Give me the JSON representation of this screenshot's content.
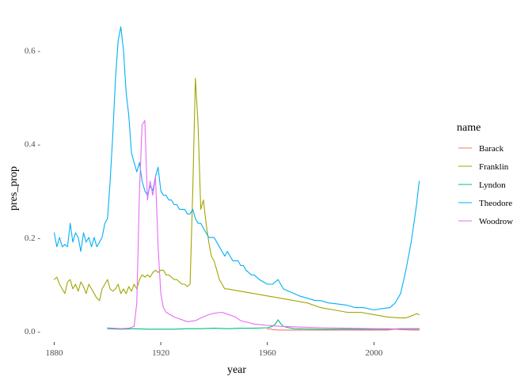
{
  "chart_data": {
    "type": "line",
    "title": "",
    "xlabel": "year",
    "ylabel": "pres_prop",
    "xlim": [
      1876,
      2021
    ],
    "ylim": [
      -0.015,
      0.67
    ],
    "x_ticks": [
      1880,
      1920,
      1960,
      2000
    ],
    "y_ticks": [
      0.0,
      0.2,
      0.4,
      0.6
    ],
    "x_tick_labels": [
      "1880",
      "1920",
      "1960",
      "2000"
    ],
    "y_tick_labels": [
      "0.0 -",
      "0.2 -",
      "0.4 -",
      "0.6 -"
    ],
    "grid": false,
    "legend": {
      "title": "name",
      "position": "right",
      "entries": [
        "Barack",
        "Franklin",
        "Lyndon",
        "Theodore",
        "Woodrow"
      ]
    },
    "series": [
      {
        "name": "Barack",
        "color": "#F8766D",
        "points": [
          [
            1960,
            0.004
          ],
          [
            1961,
            0.005
          ],
          [
            1962,
            0.003
          ],
          [
            1965,
            0.002
          ],
          [
            1970,
            0.002
          ],
          [
            1980,
            0.002
          ],
          [
            1990,
            0.002
          ],
          [
            2000,
            0.002
          ],
          [
            2005,
            0.002
          ],
          [
            2008,
            0.004
          ],
          [
            2010,
            0.003
          ],
          [
            2015,
            0.002
          ],
          [
            2017,
            0.002
          ]
        ]
      },
      {
        "name": "Franklin",
        "color": "#A3A500",
        "points": [
          [
            1880,
            0.11
          ],
          [
            1881,
            0.115
          ],
          [
            1882,
            0.1
          ],
          [
            1883,
            0.09
          ],
          [
            1884,
            0.08
          ],
          [
            1885,
            0.105
          ],
          [
            1886,
            0.11
          ],
          [
            1887,
            0.09
          ],
          [
            1888,
            0.1
          ],
          [
            1889,
            0.085
          ],
          [
            1890,
            0.105
          ],
          [
            1891,
            0.095
          ],
          [
            1892,
            0.08
          ],
          [
            1893,
            0.1
          ],
          [
            1894,
            0.09
          ],
          [
            1895,
            0.08
          ],
          [
            1896,
            0.07
          ],
          [
            1897,
            0.065
          ],
          [
            1898,
            0.09
          ],
          [
            1899,
            0.1
          ],
          [
            1900,
            0.11
          ],
          [
            1901,
            0.09
          ],
          [
            1902,
            0.085
          ],
          [
            1903,
            0.09
          ],
          [
            1904,
            0.1
          ],
          [
            1905,
            0.08
          ],
          [
            1906,
            0.09
          ],
          [
            1907,
            0.08
          ],
          [
            1908,
            0.095
          ],
          [
            1909,
            0.085
          ],
          [
            1910,
            0.1
          ],
          [
            1911,
            0.09
          ],
          [
            1912,
            0.11
          ],
          [
            1913,
            0.12
          ],
          [
            1914,
            0.115
          ],
          [
            1915,
            0.12
          ],
          [
            1916,
            0.115
          ],
          [
            1917,
            0.125
          ],
          [
            1918,
            0.13
          ],
          [
            1919,
            0.125
          ],
          [
            1920,
            0.13
          ],
          [
            1921,
            0.13
          ],
          [
            1922,
            0.12
          ],
          [
            1923,
            0.12
          ],
          [
            1924,
            0.115
          ],
          [
            1925,
            0.11
          ],
          [
            1926,
            0.11
          ],
          [
            1927,
            0.105
          ],
          [
            1928,
            0.1
          ],
          [
            1929,
            0.1
          ],
          [
            1930,
            0.095
          ],
          [
            1931,
            0.1
          ],
          [
            1932,
            0.3
          ],
          [
            1933,
            0.54
          ],
          [
            1934,
            0.44
          ],
          [
            1935,
            0.26
          ],
          [
            1936,
            0.28
          ],
          [
            1937,
            0.23
          ],
          [
            1938,
            0.19
          ],
          [
            1939,
            0.16
          ],
          [
            1940,
            0.15
          ],
          [
            1941,
            0.13
          ],
          [
            1942,
            0.11
          ],
          [
            1943,
            0.1
          ],
          [
            1944,
            0.09
          ],
          [
            1945,
            0.09
          ],
          [
            1950,
            0.085
          ],
          [
            1955,
            0.08
          ],
          [
            1960,
            0.075
          ],
          [
            1965,
            0.07
          ],
          [
            1970,
            0.065
          ],
          [
            1975,
            0.06
          ],
          [
            1980,
            0.05
          ],
          [
            1985,
            0.045
          ],
          [
            1990,
            0.04
          ],
          [
            1995,
            0.04
          ],
          [
            2000,
            0.035
          ],
          [
            2005,
            0.03
          ],
          [
            2010,
            0.028
          ],
          [
            2012,
            0.028
          ],
          [
            2014,
            0.032
          ],
          [
            2016,
            0.037
          ],
          [
            2017,
            0.035
          ]
        ]
      },
      {
        "name": "Lyndon",
        "color": "#00BF7D",
        "points": [
          [
            1900,
            0.005
          ],
          [
            1905,
            0.004
          ],
          [
            1910,
            0.005
          ],
          [
            1915,
            0.004
          ],
          [
            1920,
            0.004
          ],
          [
            1925,
            0.004
          ],
          [
            1930,
            0.005
          ],
          [
            1935,
            0.005
          ],
          [
            1940,
            0.006
          ],
          [
            1945,
            0.005
          ],
          [
            1950,
            0.006
          ],
          [
            1955,
            0.006
          ],
          [
            1960,
            0.007
          ],
          [
            1962,
            0.01
          ],
          [
            1963,
            0.015
          ],
          [
            1964,
            0.024
          ],
          [
            1965,
            0.016
          ],
          [
            1966,
            0.01
          ],
          [
            1968,
            0.007
          ],
          [
            1970,
            0.005
          ],
          [
            1980,
            0.004
          ],
          [
            1990,
            0.004
          ],
          [
            2000,
            0.004
          ],
          [
            2005,
            0.004
          ],
          [
            2010,
            0.005
          ],
          [
            2015,
            0.005
          ],
          [
            2017,
            0.005
          ]
        ]
      },
      {
        "name": "Theodore",
        "color": "#00B0F6",
        "points": [
          [
            1880,
            0.21
          ],
          [
            1881,
            0.18
          ],
          [
            1882,
            0.2
          ],
          [
            1883,
            0.18
          ],
          [
            1884,
            0.185
          ],
          [
            1885,
            0.18
          ],
          [
            1886,
            0.23
          ],
          [
            1887,
            0.19
          ],
          [
            1888,
            0.21
          ],
          [
            1889,
            0.2
          ],
          [
            1890,
            0.17
          ],
          [
            1891,
            0.21
          ],
          [
            1892,
            0.19
          ],
          [
            1893,
            0.2
          ],
          [
            1894,
            0.18
          ],
          [
            1895,
            0.2
          ],
          [
            1896,
            0.18
          ],
          [
            1897,
            0.19
          ],
          [
            1898,
            0.2
          ],
          [
            1899,
            0.23
          ],
          [
            1900,
            0.24
          ],
          [
            1901,
            0.32
          ],
          [
            1902,
            0.42
          ],
          [
            1903,
            0.54
          ],
          [
            1904,
            0.62
          ],
          [
            1905,
            0.65
          ],
          [
            1906,
            0.6
          ],
          [
            1907,
            0.51
          ],
          [
            1908,
            0.46
          ],
          [
            1909,
            0.38
          ],
          [
            1910,
            0.36
          ],
          [
            1911,
            0.34
          ],
          [
            1912,
            0.36
          ],
          [
            1913,
            0.32
          ],
          [
            1914,
            0.3
          ],
          [
            1915,
            0.29
          ],
          [
            1916,
            0.31
          ],
          [
            1917,
            0.3
          ],
          [
            1918,
            0.33
          ],
          [
            1919,
            0.35
          ],
          [
            1920,
            0.3
          ],
          [
            1921,
            0.29
          ],
          [
            1922,
            0.29
          ],
          [
            1923,
            0.28
          ],
          [
            1924,
            0.28
          ],
          [
            1925,
            0.27
          ],
          [
            1926,
            0.27
          ],
          [
            1927,
            0.26
          ],
          [
            1928,
            0.26
          ],
          [
            1929,
            0.26
          ],
          [
            1930,
            0.25
          ],
          [
            1931,
            0.25
          ],
          [
            1932,
            0.26
          ],
          [
            1933,
            0.24
          ],
          [
            1934,
            0.23
          ],
          [
            1935,
            0.23
          ],
          [
            1936,
            0.22
          ],
          [
            1937,
            0.21
          ],
          [
            1938,
            0.2
          ],
          [
            1939,
            0.2
          ],
          [
            1940,
            0.2
          ],
          [
            1941,
            0.19
          ],
          [
            1942,
            0.18
          ],
          [
            1943,
            0.17
          ],
          [
            1944,
            0.16
          ],
          [
            1945,
            0.17
          ],
          [
            1946,
            0.16
          ],
          [
            1947,
            0.15
          ],
          [
            1948,
            0.15
          ],
          [
            1949,
            0.15
          ],
          [
            1950,
            0.14
          ],
          [
            1951,
            0.14
          ],
          [
            1952,
            0.13
          ],
          [
            1953,
            0.125
          ],
          [
            1954,
            0.12
          ],
          [
            1955,
            0.12
          ],
          [
            1957,
            0.11
          ],
          [
            1960,
            0.1
          ],
          [
            1962,
            0.1
          ],
          [
            1964,
            0.11
          ],
          [
            1966,
            0.09
          ],
          [
            1968,
            0.085
          ],
          [
            1970,
            0.08
          ],
          [
            1972,
            0.075
          ],
          [
            1975,
            0.07
          ],
          [
            1978,
            0.065
          ],
          [
            1980,
            0.065
          ],
          [
            1983,
            0.06
          ],
          [
            1986,
            0.058
          ],
          [
            1990,
            0.055
          ],
          [
            1993,
            0.05
          ],
          [
            1996,
            0.05
          ],
          [
            2000,
            0.045
          ],
          [
            2003,
            0.048
          ],
          [
            2006,
            0.05
          ],
          [
            2008,
            0.06
          ],
          [
            2010,
            0.08
          ],
          [
            2012,
            0.13
          ],
          [
            2014,
            0.19
          ],
          [
            2016,
            0.27
          ],
          [
            2017,
            0.32
          ]
        ]
      },
      {
        "name": "Woodrow",
        "color": "#E76BF3",
        "points": [
          [
            1900,
            0.007
          ],
          [
            1902,
            0.006
          ],
          [
            1905,
            0.005
          ],
          [
            1908,
            0.006
          ],
          [
            1910,
            0.01
          ],
          [
            1911,
            0.06
          ],
          [
            1912,
            0.3
          ],
          [
            1913,
            0.44
          ],
          [
            1914,
            0.45
          ],
          [
            1915,
            0.28
          ],
          [
            1916,
            0.32
          ],
          [
            1917,
            0.29
          ],
          [
            1918,
            0.33
          ],
          [
            1919,
            0.18
          ],
          [
            1920,
            0.08
          ],
          [
            1921,
            0.05
          ],
          [
            1922,
            0.04
          ],
          [
            1925,
            0.03
          ],
          [
            1930,
            0.02
          ],
          [
            1933,
            0.022
          ],
          [
            1935,
            0.028
          ],
          [
            1938,
            0.035
          ],
          [
            1940,
            0.038
          ],
          [
            1943,
            0.04
          ],
          [
            1945,
            0.036
          ],
          [
            1948,
            0.03
          ],
          [
            1950,
            0.022
          ],
          [
            1953,
            0.018
          ],
          [
            1955,
            0.015
          ],
          [
            1960,
            0.012
          ],
          [
            1965,
            0.01
          ],
          [
            1970,
            0.009
          ],
          [
            1980,
            0.007
          ],
          [
            1990,
            0.006
          ],
          [
            2000,
            0.005
          ],
          [
            2005,
            0.005
          ],
          [
            2010,
            0.004
          ],
          [
            2017,
            0.004
          ]
        ]
      }
    ]
  }
}
